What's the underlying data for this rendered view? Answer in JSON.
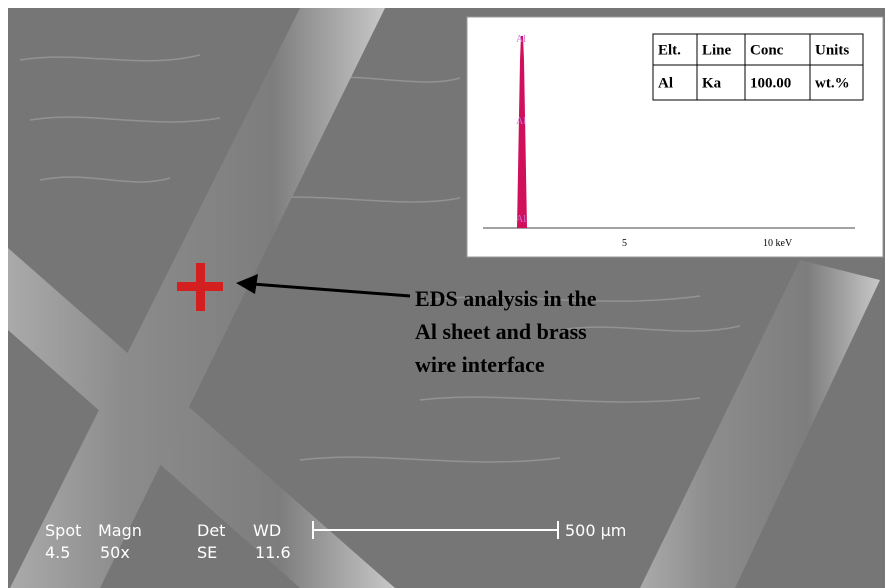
{
  "annotation": {
    "lines": [
      "EDS analysis in the",
      "Al sheet and brass",
      "wire interface"
    ]
  },
  "sem_info": {
    "spot_label": "Spot",
    "spot": "4.5",
    "magn_label": "Magn",
    "magn": "50x",
    "det_label": "Det",
    "det": "SE",
    "wd_label": "WD",
    "wd": "11.6",
    "scale": "500 µm"
  },
  "inset": {
    "peak_labels": [
      "Al",
      "Al",
      "Al"
    ],
    "axis_labels": [
      "5",
      "10 keV"
    ],
    "table": {
      "header": [
        "Elt.",
        "Line",
        "Conc",
        "Units"
      ],
      "rows": [
        [
          "Al",
          "Ka",
          "100.00",
          "wt.%"
        ]
      ]
    }
  }
}
